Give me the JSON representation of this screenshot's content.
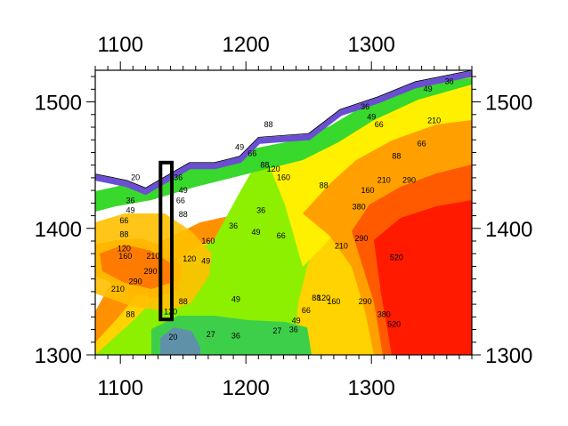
{
  "chart_data": {
    "type": "contour",
    "title": "",
    "xlabel": "",
    "ylabel": "",
    "xlim": [
      1080,
      1380
    ],
    "ylim": [
      1300,
      1525
    ],
    "x_ticks": [
      1100,
      1200,
      1300
    ],
    "y_ticks": [
      1300,
      1400,
      1500
    ],
    "x_tick_labels": [
      "1100",
      "1200",
      "1300"
    ],
    "y_tick_labels": [
      "1300",
      "1400",
      "1500"
    ],
    "contour_levels": [
      20,
      27,
      36,
      49,
      66,
      88,
      120,
      160,
      210,
      290,
      380,
      520
    ],
    "level_colors": [
      "#5f92a8",
      "#4cbf68",
      "#3ecf4a",
      "#38d82c",
      "#8cf000",
      "#bde800",
      "#fff000",
      "#ffcd00",
      "#ffa000",
      "#ff7a00",
      "#ff5a00",
      "#ff2000",
      "#ff0000"
    ],
    "boundary_top": [
      {
        "x": 1080,
        "y": 1443
      },
      {
        "x": 1105,
        "y": 1438
      },
      {
        "x": 1120,
        "y": 1432
      },
      {
        "x": 1155,
        "y": 1452
      },
      {
        "x": 1175,
        "y": 1452
      },
      {
        "x": 1195,
        "y": 1457
      },
      {
        "x": 1210,
        "y": 1472
      },
      {
        "x": 1250,
        "y": 1475
      },
      {
        "x": 1275,
        "y": 1494
      },
      {
        "x": 1305,
        "y": 1504
      },
      {
        "x": 1335,
        "y": 1516
      },
      {
        "x": 1380,
        "y": 1525
      }
    ],
    "contour_labels": [
      {
        "value": "210",
        "x": 1350,
        "y": 1483
      },
      {
        "value": "160",
        "x": 1297,
        "y": 1428
      },
      {
        "value": "210",
        "x": 1310,
        "y": 1436
      },
      {
        "value": "290",
        "x": 1330,
        "y": 1436
      },
      {
        "value": "380",
        "x": 1290,
        "y": 1415
      },
      {
        "value": "520",
        "x": 1320,
        "y": 1375
      },
      {
        "value": "290",
        "x": 1292,
        "y": 1390
      },
      {
        "value": "210",
        "x": 1276,
        "y": 1384
      },
      {
        "value": "160",
        "x": 1270,
        "y": 1340
      },
      {
        "value": "120",
        "x": 1262,
        "y": 1343
      },
      {
        "value": "88",
        "x": 1256,
        "y": 1343
      },
      {
        "value": "66",
        "x": 1248,
        "y": 1333
      },
      {
        "value": "49",
        "x": 1240,
        "y": 1325
      },
      {
        "value": "36",
        "x": 1238,
        "y": 1318
      },
      {
        "value": "290",
        "x": 1295,
        "y": 1340
      },
      {
        "value": "380",
        "x": 1310,
        "y": 1330
      },
      {
        "value": "520",
        "x": 1318,
        "y": 1322
      },
      {
        "value": "160",
        "x": 1230,
        "y": 1438
      },
      {
        "value": "120",
        "x": 1222,
        "y": 1445
      },
      {
        "value": "88",
        "x": 1215,
        "y": 1448
      },
      {
        "value": "66",
        "x": 1205,
        "y": 1457
      },
      {
        "value": "49",
        "x": 1195,
        "y": 1462
      },
      {
        "value": "36",
        "x": 1212,
        "y": 1412
      },
      {
        "value": "49",
        "x": 1208,
        "y": 1395
      },
      {
        "value": "66",
        "x": 1228,
        "y": 1392
      },
      {
        "value": "88",
        "x": 1262,
        "y": 1432
      },
      {
        "value": "88",
        "x": 1218,
        "y": 1480
      },
      {
        "value": "66",
        "x": 1306,
        "y": 1480
      },
      {
        "value": "49",
        "x": 1300,
        "y": 1486
      },
      {
        "value": "36",
        "x": 1295,
        "y": 1494
      },
      {
        "value": "88",
        "x": 1320,
        "y": 1455
      },
      {
        "value": "66",
        "x": 1340,
        "y": 1465
      },
      {
        "value": "49",
        "x": 1345,
        "y": 1508
      },
      {
        "value": "36",
        "x": 1362,
        "y": 1514
      },
      {
        "value": "20",
        "x": 1112,
        "y": 1438
      },
      {
        "value": "36",
        "x": 1108,
        "y": 1420
      },
      {
        "value": "49",
        "x": 1108,
        "y": 1412
      },
      {
        "value": "66",
        "x": 1103,
        "y": 1404
      },
      {
        "value": "88",
        "x": 1103,
        "y": 1393
      },
      {
        "value": "120",
        "x": 1103,
        "y": 1382
      },
      {
        "value": "160",
        "x": 1104,
        "y": 1376
      },
      {
        "value": "210",
        "x": 1126,
        "y": 1376
      },
      {
        "value": "210",
        "x": 1098,
        "y": 1350
      },
      {
        "value": "290",
        "x": 1112,
        "y": 1356
      },
      {
        "value": "290",
        "x": 1124,
        "y": 1364
      },
      {
        "value": "36",
        "x": 1146,
        "y": 1438
      },
      {
        "value": "49",
        "x": 1150,
        "y": 1428
      },
      {
        "value": "66",
        "x": 1148,
        "y": 1420
      },
      {
        "value": "88",
        "x": 1150,
        "y": 1409
      },
      {
        "value": "120",
        "x": 1155,
        "y": 1374
      },
      {
        "value": "160",
        "x": 1170,
        "y": 1388
      },
      {
        "value": "49",
        "x": 1168,
        "y": 1372
      },
      {
        "value": "88",
        "x": 1150,
        "y": 1340
      },
      {
        "value": "120",
        "x": 1140,
        "y": 1332
      },
      {
        "value": "88",
        "x": 1108,
        "y": 1330
      },
      {
        "value": "36",
        "x": 1190,
        "y": 1400
      },
      {
        "value": "49",
        "x": 1192,
        "y": 1342
      },
      {
        "value": "36",
        "x": 1192,
        "y": 1313
      },
      {
        "value": "27",
        "x": 1172,
        "y": 1314
      },
      {
        "value": "20",
        "x": 1142,
        "y": 1312
      },
      {
        "value": "27",
        "x": 1225,
        "y": 1317
      }
    ],
    "annotation_rectangle": {
      "x0": 1132,
      "x1": 1141,
      "y0": 1328,
      "y1": 1452
    },
    "grid": false,
    "legend": "none"
  }
}
